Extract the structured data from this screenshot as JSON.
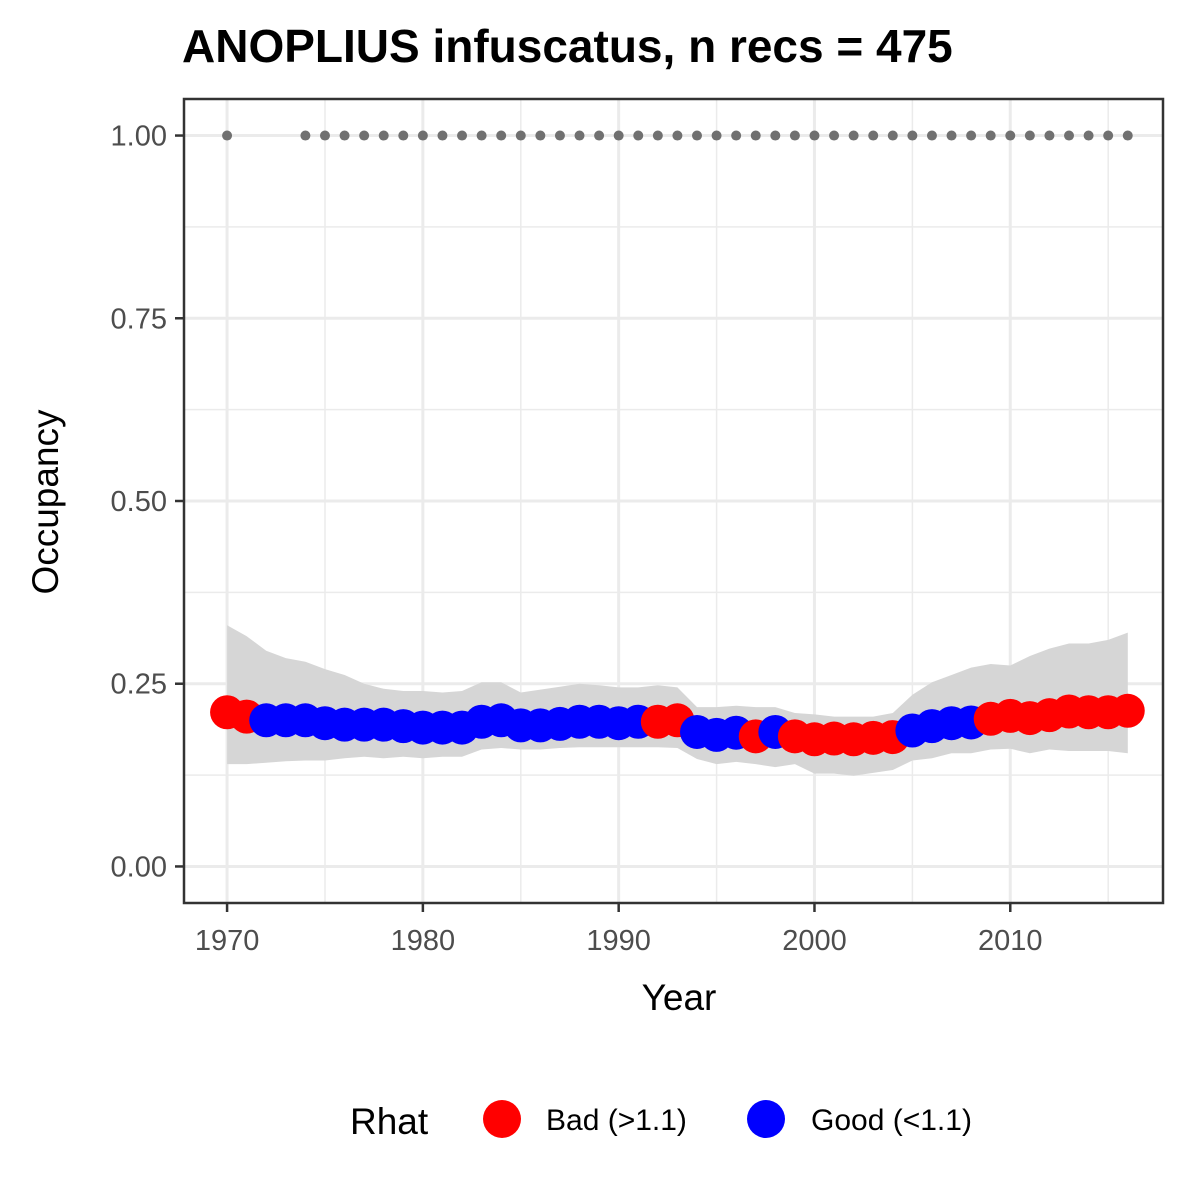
{
  "chart_data": {
    "type": "scatter",
    "title": "ANOPLIUS infuscatus, n recs = 475",
    "xlabel": "Year",
    "ylabel": "Occupancy",
    "xlim": [
      1967.8,
      2017.8
    ],
    "ylim": [
      -0.05,
      1.05
    ],
    "x_ticks": [
      1970,
      1980,
      1990,
      2000,
      2010
    ],
    "x_tick_labels": [
      "1970",
      "1980",
      "1990",
      "2000",
      "2010"
    ],
    "y_ticks": [
      0,
      0.25,
      0.5,
      0.75,
      1
    ],
    "y_tick_labels": [
      "0.00",
      "0.25",
      "0.50",
      "0.75",
      "1.00"
    ],
    "grid": true,
    "legend": {
      "title": "Rhat",
      "placement": "bottom",
      "entries": [
        {
          "label": "Bad (>1.1)",
          "color": "#ff0000"
        },
        {
          "label": "Good (<1.1)",
          "color": "#0000ff"
        }
      ]
    },
    "colors": {
      "bad": "#ff0000",
      "good": "#0000ff",
      "ribbon": "#d6d6d6",
      "records": "#707070"
    },
    "series": [
      {
        "x": [
          1970,
          1971,
          1972,
          1973,
          1974,
          1975,
          1976,
          1977,
          1978,
          1979,
          1980,
          1981,
          1982,
          1983,
          1984,
          1985,
          1986,
          1987,
          1988,
          1989,
          1990,
          1991,
          1992,
          1993,
          1994,
          1995,
          1996,
          1997,
          1998,
          1999,
          2000,
          2001,
          2002,
          2003,
          2004,
          2005,
          2006,
          2007,
          2008,
          2009,
          2010,
          2011,
          2012,
          2013,
          2014,
          2015,
          2016
        ],
        "values": [
          0.211,
          0.205,
          0.2,
          0.2,
          0.2,
          0.196,
          0.194,
          0.194,
          0.194,
          0.192,
          0.19,
          0.19,
          0.19,
          0.198,
          0.2,
          0.193,
          0.193,
          0.195,
          0.198,
          0.198,
          0.196,
          0.198,
          0.198,
          0.2,
          0.184,
          0.18,
          0.183,
          0.178,
          0.184,
          0.178,
          0.174,
          0.175,
          0.174,
          0.176,
          0.177,
          0.186,
          0.192,
          0.196,
          0.197,
          0.202,
          0.206,
          0.203,
          0.207,
          0.212,
          0.211,
          0.211,
          0.213
        ],
        "rhat": [
          "Bad",
          "Bad",
          "Good",
          "Good",
          "Good",
          "Good",
          "Good",
          "Good",
          "Good",
          "Good",
          "Good",
          "Good",
          "Good",
          "Good",
          "Good",
          "Good",
          "Good",
          "Good",
          "Good",
          "Good",
          "Good",
          "Good",
          "Bad",
          "Bad",
          "Good",
          "Good",
          "Good",
          "Bad",
          "Good",
          "Bad",
          "Bad",
          "Bad",
          "Bad",
          "Bad",
          "Bad",
          "Good",
          "Good",
          "Good",
          "Good",
          "Bad",
          "Bad",
          "Bad",
          "Bad",
          "Bad",
          "Bad",
          "Bad",
          "Bad"
        ],
        "ci_lower": [
          0.14,
          0.14,
          0.142,
          0.144,
          0.145,
          0.145,
          0.148,
          0.15,
          0.148,
          0.15,
          0.148,
          0.15,
          0.15,
          0.16,
          0.162,
          0.16,
          0.16,
          0.162,
          0.163,
          0.163,
          0.163,
          0.163,
          0.163,
          0.162,
          0.147,
          0.14,
          0.143,
          0.14,
          0.136,
          0.14,
          0.127,
          0.127,
          0.124,
          0.128,
          0.132,
          0.145,
          0.148,
          0.155,
          0.155,
          0.16,
          0.161,
          0.155,
          0.16,
          0.158,
          0.158,
          0.158,
          0.155
        ],
        "ci_upper": [
          0.33,
          0.315,
          0.295,
          0.285,
          0.28,
          0.27,
          0.262,
          0.25,
          0.243,
          0.24,
          0.24,
          0.238,
          0.24,
          0.252,
          0.252,
          0.238,
          0.242,
          0.246,
          0.25,
          0.248,
          0.245,
          0.245,
          0.248,
          0.245,
          0.218,
          0.218,
          0.22,
          0.218,
          0.218,
          0.21,
          0.208,
          0.205,
          0.205,
          0.205,
          0.21,
          0.235,
          0.252,
          0.262,
          0.272,
          0.277,
          0.275,
          0.288,
          0.298,
          0.305,
          0.305,
          0.31,
          0.32
        ]
      }
    ],
    "records": {
      "x": [
        1970,
        1974,
        1975,
        1976,
        1977,
        1978,
        1979,
        1980,
        1981,
        1982,
        1983,
        1984,
        1985,
        1986,
        1987,
        1988,
        1989,
        1990,
        1991,
        1992,
        1993,
        1994,
        1995,
        1996,
        1997,
        1998,
        1999,
        2000,
        2001,
        2002,
        2003,
        2004,
        2005,
        2006,
        2007,
        2008,
        2009,
        2010,
        2011,
        2012,
        2013,
        2014,
        2015,
        2016
      ],
      "y": 1
    }
  }
}
